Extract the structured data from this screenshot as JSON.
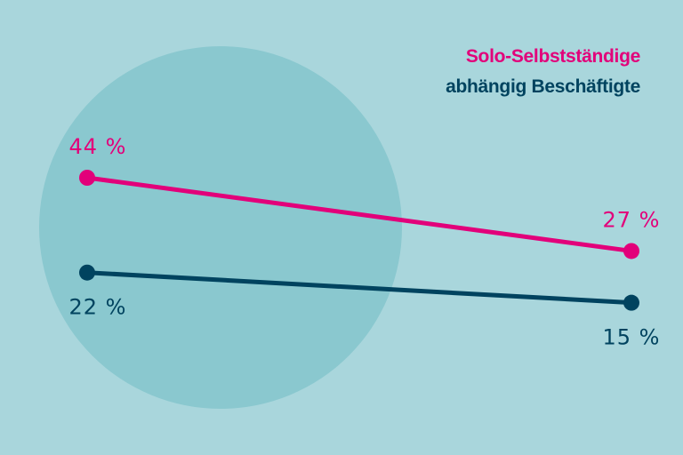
{
  "chart_data": {
    "type": "line",
    "title": "",
    "xlabel": "",
    "ylabel": "",
    "x": [
      0,
      1
    ],
    "series": [
      {
        "name": "Solo-Selbstständige",
        "values": [
          44,
          27
        ],
        "labels": [
          "44 %",
          "27 %"
        ],
        "color": "#e2007a"
      },
      {
        "name": "abhängig Beschäftigte",
        "values": [
          22,
          15
        ],
        "labels": [
          "22 %",
          "15 %"
        ],
        "color": "#00435f"
      }
    ],
    "legend_placement": "top-right",
    "grid": false
  },
  "colors": {
    "background": "#a9d6dc",
    "circle": "#8ac8cf"
  }
}
